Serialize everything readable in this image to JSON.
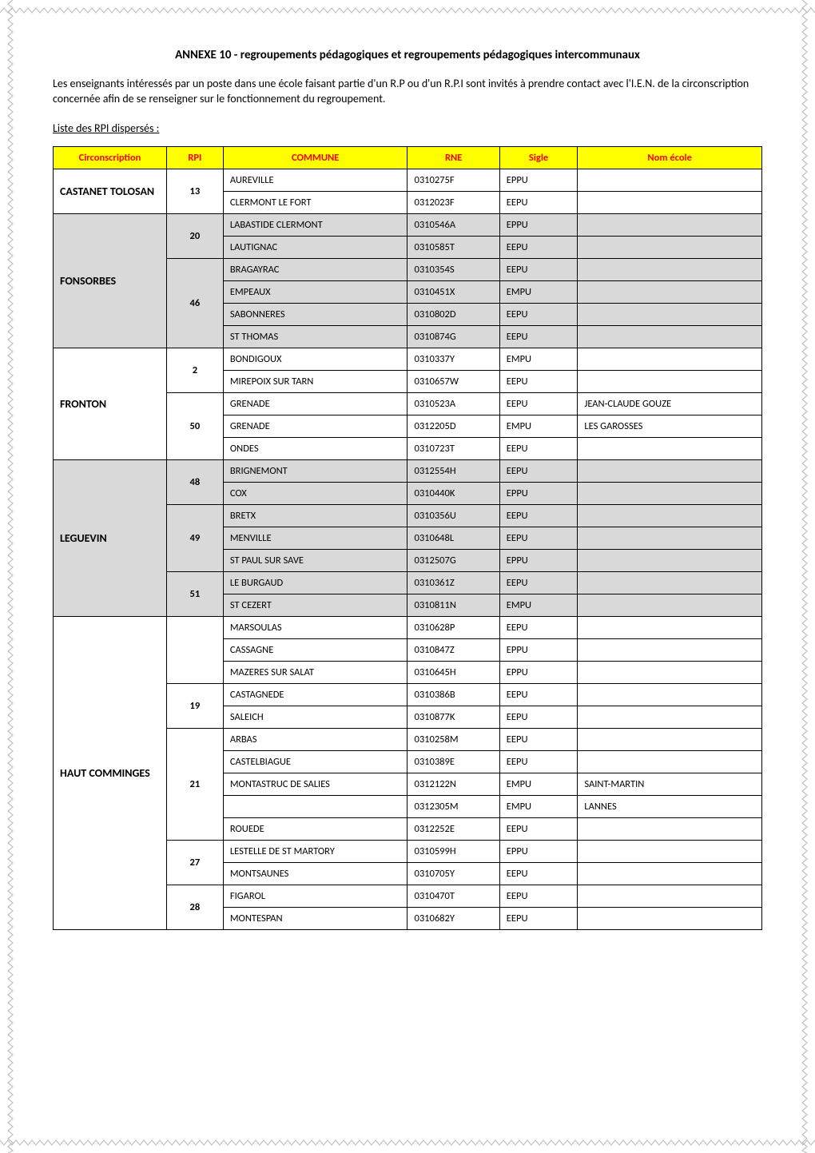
{
  "doc": {
    "title": "ANNEXE 10 - regroupements pédagogiques et regroupements pédagogiques intercommunaux",
    "intro": "Les enseignants intéressés par un poste dans une école faisant partie d'un R.P ou d'un R.P.I sont invités à prendre contact avec l'I.E.N. de la circonscription concernée afin de se renseigner sur le fonctionnement du regroupement.",
    "subhead": "Liste des RPI dispersés :"
  },
  "table": {
    "type": "table",
    "header_bg": "#ffff00",
    "header_fg": "#ff0000",
    "shade_bg": "#d9d9d9",
    "border_color": "#000000",
    "col_widths_pct": [
      16,
      8,
      26,
      13,
      11,
      26
    ],
    "font_size_pt": 9.5,
    "header_font_weight": 700,
    "columns": [
      "Circonscription",
      "RPI",
      "COMMUNE",
      "RNE",
      "Sigle",
      "Nom école"
    ],
    "rows": [
      {
        "circon": "CASTANET TOLOSAN",
        "circon_rowspan": 2,
        "rpi": "13",
        "rpi_rowspan": 2,
        "commune": "AUREVILLE",
        "rne": "0310275F",
        "sigle": "EPPU",
        "nom": "",
        "shade": false
      },
      {
        "commune": "CLERMONT LE FORT",
        "rne": "0312023F",
        "sigle": "EEPU",
        "nom": "",
        "shade": false
      },
      {
        "circon": "FONSORBES",
        "circon_rowspan": 6,
        "rpi": "20",
        "rpi_rowspan": 2,
        "commune": "LABASTIDE CLERMONT",
        "rne": "0310546A",
        "sigle": "EPPU",
        "nom": "",
        "shade": true
      },
      {
        "commune": "LAUTIGNAC",
        "rne": "0310585T",
        "sigle": "EEPU",
        "nom": "",
        "shade": true
      },
      {
        "rpi": "46",
        "rpi_rowspan": 4,
        "commune": "BRAGAYRAC",
        "rne": "0310354S",
        "sigle": "EEPU",
        "nom": "",
        "shade": true
      },
      {
        "commune": "EMPEAUX",
        "rne": "0310451X",
        "sigle": "EMPU",
        "nom": "",
        "shade": true
      },
      {
        "commune": "SABONNERES",
        "rne": "0310802D",
        "sigle": "EEPU",
        "nom": "",
        "shade": true
      },
      {
        "commune": "ST THOMAS",
        "rne": "0310874G",
        "sigle": "EEPU",
        "nom": "",
        "shade": true
      },
      {
        "circon": "FRONTON",
        "circon_rowspan": 5,
        "rpi": "2",
        "rpi_rowspan": 2,
        "commune": "BONDIGOUX",
        "rne": "0310337Y",
        "sigle": "EMPU",
        "nom": "",
        "shade": false
      },
      {
        "commune": "MIREPOIX SUR TARN",
        "rne": "0310657W",
        "sigle": "EEPU",
        "nom": "",
        "shade": false
      },
      {
        "rpi": "50",
        "rpi_rowspan": 3,
        "commune": "GRENADE",
        "rne": "0310523A",
        "sigle": "EEPU",
        "nom": "JEAN-CLAUDE GOUZE",
        "shade": false
      },
      {
        "commune": "GRENADE",
        "rne": "0312205D",
        "sigle": "EMPU",
        "nom": "LES GAROSSES",
        "shade": false
      },
      {
        "commune": "ONDES",
        "rne": "0310723T",
        "sigle": "EEPU",
        "nom": "",
        "shade": false
      },
      {
        "circon": "LEGUEVIN",
        "circon_rowspan": 7,
        "rpi": "48",
        "rpi_rowspan": 2,
        "commune": "BRIGNEMONT",
        "rne": "0312554H",
        "sigle": "EEPU",
        "nom": "",
        "shade": true
      },
      {
        "commune": "COX",
        "rne": "0310440K",
        "sigle": "EPPU",
        "nom": "",
        "shade": true
      },
      {
        "rpi": "49",
        "rpi_rowspan": 3,
        "commune": "BRETX",
        "rne": "0310356U",
        "sigle": "EEPU",
        "nom": "",
        "shade": true
      },
      {
        "commune": "MENVILLE",
        "rne": "0310648L",
        "sigle": "EEPU",
        "nom": "",
        "shade": true
      },
      {
        "commune": "ST PAUL SUR SAVE",
        "rne": "0312507G",
        "sigle": "EPPU",
        "nom": "",
        "shade": true
      },
      {
        "rpi": "51",
        "rpi_rowspan": 2,
        "commune": "LE BURGAUD",
        "rne": "0310361Z",
        "sigle": "EEPU",
        "nom": "",
        "shade": true
      },
      {
        "commune": "ST CEZERT",
        "rne": "0310811N",
        "sigle": "EMPU",
        "nom": "",
        "shade": true
      },
      {
        "circon": "HAUT COMMINGES",
        "circon_rowspan": 14,
        "rpi": "",
        "rpi_rowspan": 3,
        "commune": "MARSOULAS",
        "rne": "0310628P",
        "sigle": "EEPU",
        "nom": "",
        "shade": false
      },
      {
        "commune": "CASSAGNE",
        "rne": "0310847Z",
        "sigle": "EPPU",
        "nom": "",
        "shade": false
      },
      {
        "commune": "MAZERES SUR SALAT",
        "rne": "0310645H",
        "sigle": "EPPU",
        "nom": "",
        "shade": false
      },
      {
        "rpi": "19",
        "rpi_rowspan": 2,
        "commune": "CASTAGNEDE",
        "rne": "0310386B",
        "sigle": "EEPU",
        "nom": "",
        "shade": false
      },
      {
        "commune": "SALEICH",
        "rne": "0310877K",
        "sigle": "EEPU",
        "nom": "",
        "shade": false
      },
      {
        "rpi": "21",
        "rpi_rowspan": 5,
        "commune": "ARBAS",
        "rne": "0310258M",
        "sigle": "EEPU",
        "nom": "",
        "shade": false
      },
      {
        "commune": "CASTELBIAGUE",
        "rne": "0310389E",
        "sigle": "EEPU",
        "nom": "",
        "shade": false
      },
      {
        "commune": "MONTASTRUC DE SALIES",
        "rne": "0312122N",
        "sigle": "EMPU",
        "nom": "SAINT-MARTIN",
        "shade": false
      },
      {
        "commune": "",
        "rne": "0312305M",
        "sigle": "EMPU",
        "nom": "LANNES",
        "shade": false
      },
      {
        "commune": "ROUEDE",
        "rne": "0312252E",
        "sigle": "EEPU",
        "nom": "",
        "shade": false
      },
      {
        "rpi": "27",
        "rpi_rowspan": 2,
        "commune": "LESTELLE DE ST MARTORY",
        "rne": "0310599H",
        "sigle": "EPPU",
        "nom": "",
        "shade": false
      },
      {
        "commune": "MONTSAUNES",
        "rne": "0310705Y",
        "sigle": "EEPU",
        "nom": "",
        "shade": false
      },
      {
        "rpi": "28",
        "rpi_rowspan": 2,
        "commune": "FIGAROL",
        "rne": "0310470T",
        "sigle": "EEPU",
        "nom": "",
        "shade": false
      },
      {
        "commune": "MONTESPAN",
        "rne": "0310682Y",
        "sigle": "EEPU",
        "nom": "",
        "shade": false
      }
    ]
  }
}
